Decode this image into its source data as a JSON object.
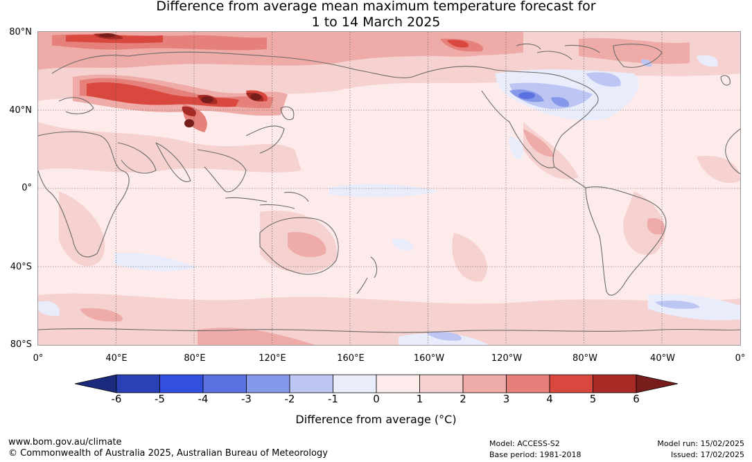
{
  "title": {
    "line1": "Difference from average mean maximum temperature forecast for",
    "line2": "1 to 14 March 2025"
  },
  "map": {
    "lat_labels": [
      "80°N",
      "40°N",
      "0°",
      "40°S",
      "80°S"
    ],
    "lon_labels": [
      "0°",
      "40°E",
      "80°E",
      "120°E",
      "160°E",
      "160°W",
      "120°W",
      "80°W",
      "40°W",
      "0°"
    ]
  },
  "legend": {
    "ticks": [
      "-6",
      "-5",
      "-4",
      "-3",
      "-2",
      "-1",
      "0",
      "1",
      "2",
      "3",
      "4",
      "5",
      "6"
    ],
    "colors": [
      "#1b2a7c",
      "#2a41b5",
      "#3150e0",
      "#5a72e0",
      "#8698ea",
      "#bdc6f2",
      "#e9ecfa",
      "#fdeaea",
      "#f5d1cf",
      "#eeaba7",
      "#e6807a",
      "#d9483f",
      "#a82a24",
      "#771d1b"
    ],
    "label": "Difference from average (°C)"
  },
  "footer": {
    "url": "www.bom.gov.au/climate",
    "copyright": "© Commonwealth of Australia 2025, Australian Bureau of Meteorology",
    "model": "Model: ACCESS-S2",
    "base_period": "Base period: 1981-2018",
    "model_run": "Model run: 15/02/2025",
    "issued": "Issued: 17/02/2025"
  }
}
